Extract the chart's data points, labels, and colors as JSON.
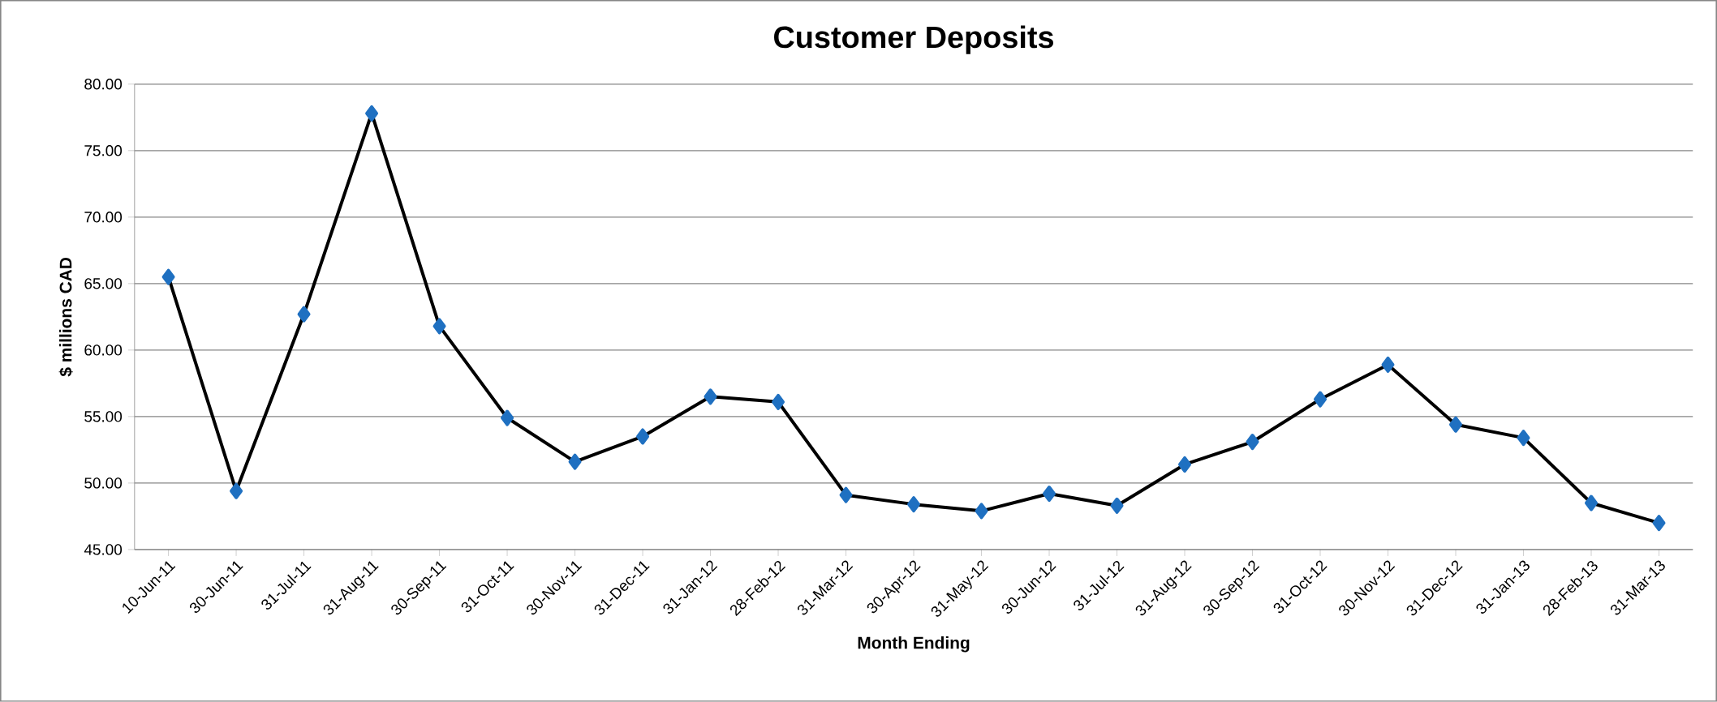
{
  "chart_data": {
    "type": "line",
    "title": "Customer Deposits",
    "xlabel": "Month Ending",
    "ylabel": "$ millions CAD",
    "categories": [
      "10-Jun-11",
      "30-Jun-11",
      "31-Jul-11",
      "31-Aug-11",
      "30-Sep-11",
      "31-Oct-11",
      "30-Nov-11",
      "31-Dec-11",
      "31-Jan-12",
      "28-Feb-12",
      "31-Mar-12",
      "30-Apr-12",
      "31-May-12",
      "30-Jun-12",
      "31-Jul-12",
      "31-Aug-12",
      "30-Sep-12",
      "31-Oct-12",
      "30-Nov-12",
      "31-Dec-12",
      "31-Jan-13",
      "28-Feb-13",
      "31-Mar-13"
    ],
    "series": [
      {
        "color": "#000000",
        "values": [
          65.5,
          49.4,
          62.7,
          77.8,
          61.8,
          54.9,
          51.6,
          53.5,
          56.5,
          56.1,
          49.1,
          48.4,
          47.9,
          49.2,
          48.3,
          51.4,
          53.1,
          56.3,
          58.9,
          54.4,
          53.4,
          48.5,
          47.0
        ]
      }
    ],
    "marker": "diamond",
    "ylim": [
      45,
      80
    ],
    "yticks": [
      {
        "value": 45,
        "label": "45.00"
      },
      {
        "value": 50,
        "label": "50.00"
      },
      {
        "value": 55,
        "label": "55.00"
      },
      {
        "value": 60,
        "label": "60.00"
      },
      {
        "value": 65,
        "label": "65.00"
      },
      {
        "value": 70,
        "label": "70.00"
      },
      {
        "value": 75,
        "label": "75.00"
      },
      {
        "value": 80,
        "label": "80.00"
      }
    ],
    "grid": "y"
  }
}
